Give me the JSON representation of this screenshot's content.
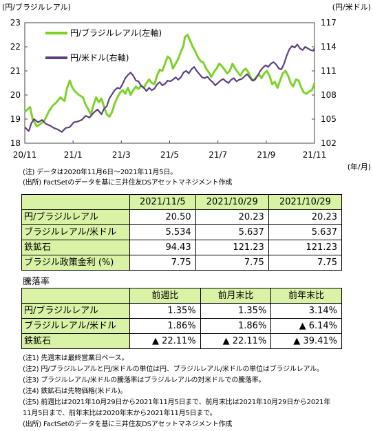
{
  "chart_data": {
    "type": "line",
    "left_axis_unit": "(円/ブラジルレアル)",
    "right_axis_unit": "(円/米ドル)",
    "x_axis_unit": "(年/月)",
    "left_ylim": [
      18,
      23
    ],
    "right_ylim": [
      102,
      117
    ],
    "left_ticks": [
      "18",
      "19",
      "20",
      "21",
      "22",
      "23"
    ],
    "right_ticks": [
      "102",
      "105",
      "108",
      "111",
      "114",
      "117"
    ],
    "x_ticks": [
      "20/11",
      "21/1",
      "21/3",
      "21/5",
      "21/7",
      "21/9",
      "21/11"
    ],
    "legend_placement": "top-left",
    "series": [
      {
        "name": "円/ブラジルレアル(左軸)",
        "axis": "left",
        "color": "#7dd22a",
        "points": [
          [
            0,
            19.3
          ],
          [
            4,
            19.5
          ],
          [
            6,
            19.0
          ],
          [
            9,
            18.7
          ],
          [
            12,
            18.8
          ],
          [
            15,
            18.95
          ],
          [
            18,
            19.3
          ],
          [
            21,
            19.55
          ],
          [
            24,
            19.7
          ],
          [
            27,
            19.9
          ],
          [
            30,
            19.75
          ],
          [
            32,
            20.3
          ],
          [
            34,
            20.6
          ],
          [
            36,
            20.3
          ],
          [
            38,
            20.15
          ],
          [
            41,
            20.0
          ],
          [
            44,
            19.9
          ],
          [
            46,
            19.6
          ],
          [
            48,
            19.4
          ],
          [
            50,
            19.2
          ],
          [
            52,
            19.6
          ],
          [
            54,
            19.9
          ],
          [
            56,
            19.7
          ],
          [
            58,
            19.85
          ],
          [
            60,
            19.5
          ],
          [
            62,
            19.2
          ],
          [
            64,
            19.1
          ],
          [
            66,
            19.3
          ],
          [
            68,
            19.65
          ],
          [
            70,
            19.9
          ],
          [
            72,
            20.1
          ],
          [
            74,
            20.2
          ],
          [
            76,
            20.05
          ],
          [
            78,
            20.3
          ],
          [
            80,
            20.0
          ],
          [
            82,
            20.2
          ],
          [
            84,
            20.35
          ],
          [
            86,
            20.25
          ],
          [
            88,
            20.4
          ],
          [
            90,
            20.3
          ],
          [
            92,
            20.5
          ],
          [
            94,
            20.65
          ],
          [
            96,
            20.5
          ],
          [
            98,
            20.45
          ],
          [
            100,
            20.8
          ],
          [
            102,
            21.05
          ],
          [
            104,
            21.0
          ],
          [
            106,
            21.3
          ],
          [
            108,
            21.6
          ],
          [
            110,
            21.5
          ],
          [
            112,
            21.1
          ],
          [
            114,
            21.3
          ],
          [
            116,
            21.5
          ],
          [
            118,
            21.8
          ],
          [
            120,
            22.05
          ],
          [
            121,
            22.4
          ],
          [
            123,
            22.5
          ],
          [
            125,
            22.25
          ],
          [
            127,
            22.0
          ],
          [
            129,
            21.8
          ],
          [
            131,
            21.55
          ],
          [
            133,
            21.4
          ],
          [
            135,
            21.35
          ],
          [
            137,
            21.1
          ],
          [
            139,
            20.95
          ],
          [
            141,
            20.75
          ],
          [
            143,
            20.95
          ],
          [
            145,
            21.1
          ],
          [
            147,
            21.3
          ],
          [
            149,
            21.2
          ],
          [
            151,
            21.05
          ],
          [
            153,
            20.9
          ],
          [
            155,
            21.0
          ],
          [
            157,
            21.3
          ],
          [
            159,
            21.1
          ],
          [
            161,
            20.95
          ],
          [
            163,
            20.8
          ],
          [
            165,
            21.0
          ],
          [
            167,
            21.1
          ],
          [
            169,
            20.95
          ],
          [
            171,
            20.7
          ],
          [
            173,
            20.6
          ],
          [
            175,
            20.75
          ],
          [
            177,
            20.85
          ],
          [
            179,
            20.7
          ],
          [
            181,
            20.9
          ],
          [
            183,
            21.0
          ],
          [
            185,
            20.8
          ],
          [
            187,
            20.45
          ],
          [
            189,
            20.55
          ],
          [
            191,
            20.3
          ],
          [
            193,
            20.6
          ],
          [
            195,
            20.9
          ],
          [
            197,
            21.0
          ],
          [
            199,
            20.8
          ],
          [
            201,
            20.5
          ],
          [
            203,
            20.35
          ],
          [
            205,
            20.65
          ],
          [
            207,
            20.6
          ],
          [
            209,
            20.3
          ],
          [
            211,
            20.1
          ],
          [
            213,
            20.05
          ],
          [
            215,
            20.15
          ],
          [
            217,
            20.2
          ],
          [
            219,
            20.5
          ]
        ]
      },
      {
        "name": "円/米ドル(右軸)",
        "axis": "right",
        "color": "#5b4080",
        "points": [
          [
            0,
            104.0
          ],
          [
            3,
            103.5
          ],
          [
            5,
            104.5
          ],
          [
            7,
            105.0
          ],
          [
            10,
            104.6
          ],
          [
            13,
            104.9
          ],
          [
            16,
            104.4
          ],
          [
            19,
            104.2
          ],
          [
            22,
            103.9
          ],
          [
            25,
            103.7
          ],
          [
            28,
            103.4
          ],
          [
            31,
            103.9
          ],
          [
            34,
            104.0
          ],
          [
            37,
            104.6
          ],
          [
            40,
            104.7
          ],
          [
            43,
            104.9
          ],
          [
            46,
            105.4
          ],
          [
            49,
            105.2
          ],
          [
            52,
            105.8
          ],
          [
            55,
            106.2
          ],
          [
            58,
            105.6
          ],
          [
            60,
            106.3
          ],
          [
            62,
            106.6
          ],
          [
            64,
            107.6
          ],
          [
            66,
            108.1
          ],
          [
            68,
            108.6
          ],
          [
            70,
            108.9
          ],
          [
            72,
            108.8
          ],
          [
            74,
            109.4
          ],
          [
            76,
            110.1
          ],
          [
            78,
            110.5
          ],
          [
            80,
            110.8
          ],
          [
            82,
            110.4
          ],
          [
            84,
            109.8
          ],
          [
            86,
            109.7
          ],
          [
            88,
            109.1
          ],
          [
            90,
            108.9
          ],
          [
            92,
            108.5
          ],
          [
            94,
            108.9
          ],
          [
            96,
            108.6
          ],
          [
            98,
            108.8
          ],
          [
            100,
            109.3
          ],
          [
            102,
            109.6
          ],
          [
            104,
            109.2
          ],
          [
            106,
            109.4
          ],
          [
            108,
            109.8
          ],
          [
            110,
            109.7
          ],
          [
            112,
            109.9
          ],
          [
            114,
            110.2
          ],
          [
            116,
            109.9
          ],
          [
            118,
            110.2
          ],
          [
            120,
            110.8
          ],
          [
            122,
            111.0
          ],
          [
            124,
            110.7
          ],
          [
            126,
            111.2
          ],
          [
            128,
            111.5
          ],
          [
            130,
            111.0
          ],
          [
            132,
            110.6
          ],
          [
            134,
            110.2
          ],
          [
            136,
            110.1
          ],
          [
            138,
            110.3
          ],
          [
            140,
            109.9
          ],
          [
            142,
            109.6
          ],
          [
            144,
            109.2
          ],
          [
            146,
            109.5
          ],
          [
            148,
            109.8
          ],
          [
            150,
            110.0
          ],
          [
            152,
            109.7
          ],
          [
            154,
            109.5
          ],
          [
            156,
            109.9
          ],
          [
            158,
            110.1
          ],
          [
            160,
            109.7
          ],
          [
            162,
            109.9
          ],
          [
            164,
            110.0
          ],
          [
            166,
            110.3
          ],
          [
            168,
            110.6
          ],
          [
            170,
            110.2
          ],
          [
            172,
            109.8
          ],
          [
            174,
            109.9
          ],
          [
            176,
            110.4
          ],
          [
            178,
            111.0
          ],
          [
            180,
            111.4
          ],
          [
            182,
            111.7
          ],
          [
            184,
            111.5
          ],
          [
            186,
            111.9
          ],
          [
            188,
            112.1
          ],
          [
            190,
            111.8
          ],
          [
            192,
            111.3
          ],
          [
            194,
            111.2
          ],
          [
            196,
            111.9
          ],
          [
            198,
            112.9
          ],
          [
            200,
            113.7
          ],
          [
            202,
            114.1
          ],
          [
            204,
            113.9
          ],
          [
            206,
            114.3
          ],
          [
            208,
            113.8
          ],
          [
            210,
            113.6
          ],
          [
            212,
            114.0
          ],
          [
            214,
            113.8
          ],
          [
            216,
            113.6
          ],
          [
            218,
            113.5
          ],
          [
            219,
            113.8
          ]
        ]
      }
    ]
  },
  "notes": {
    "chart_note": "(注) データは2020年11月6日～2021年11月5日。",
    "chart_source": "(出所) FactSetのデータを基に三井住友DSアセットマネジメント作成"
  },
  "table1": {
    "headers": [
      "2021/11/5",
      "2021/10/29",
      "2021/10/29"
    ],
    "rows": [
      {
        "label": "円/ブラジルレアル",
        "values": [
          "20.50",
          "20.23",
          "20.23"
        ]
      },
      {
        "label": "ブラジルレアル/米ドル",
        "values": [
          "5.534",
          "5.637",
          "5.637"
        ]
      },
      {
        "label": "鉄鉱石",
        "values": [
          "94.43",
          "121.23",
          "121.23"
        ]
      },
      {
        "label": "ブラジル政策金利 (%)",
        "values": [
          "7.75",
          "7.75",
          "7.75"
        ]
      }
    ]
  },
  "section_title": "騰落率",
  "table2": {
    "headers": [
      "前週比",
      "前月末比",
      "前年末比"
    ],
    "rows": [
      {
        "label": "円/ブラジルレアル",
        "values": [
          "1.35%",
          "1.35%",
          "3.14%"
        ]
      },
      {
        "label": "ブラジルレアル/米ドル",
        "values": [
          "1.86%",
          "1.86%",
          "▲ 6.14%"
        ]
      },
      {
        "label": "鉄鉱石",
        "values": [
          "▲ 22.11%",
          "▲ 22.11%",
          "▲ 39.41%"
        ]
      }
    ]
  },
  "footnotes": [
    "(注1) 先週末は最終営業日ベース。",
    "(注2) 円/ブラジルレアルと円/米ドルの単位は円、ブラジルレアル/米ドルの単位はブラジルレアル。",
    "(注3) ブラジルレアル/米ドルの騰落率はブラジルレアルの対米ドルでの騰落率。",
    "(注4) 鉄鉱石は先物価格(米ドル)。",
    "(注5) 前週比は2021年10月29日から2021年11月5日まで、前月末比は2021年10月29日から2021年",
    "       11月5日まで、前年末比は2020年末から2021年11月5日まで。",
    "(出所) FactSetのデータを基に三井住友DSアセットマネジメント作成"
  ]
}
